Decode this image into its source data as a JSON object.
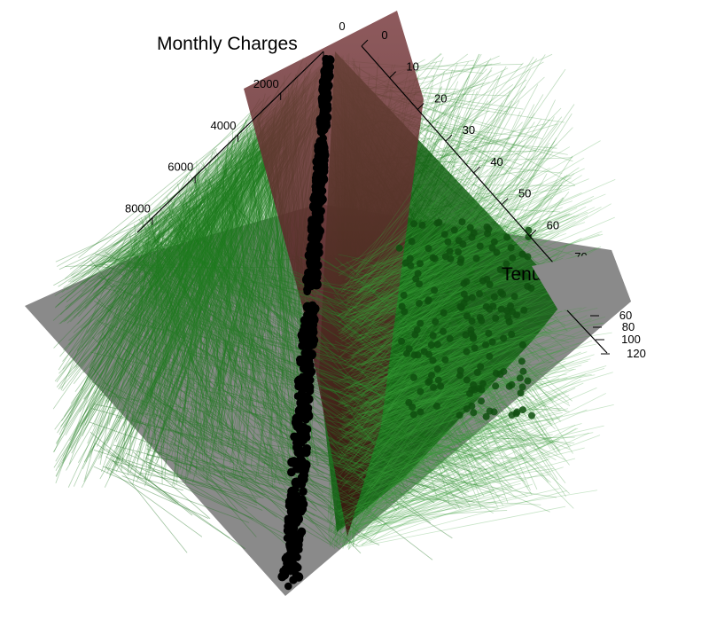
{
  "chart_data": {
    "type": "scatter",
    "subtype": "3d-scatter-with-regression-planes",
    "title": "",
    "axes": {
      "z": {
        "label": "Monthly Charges",
        "ticks": [
          "0",
          "2000",
          "4000",
          "6000",
          "8000"
        ],
        "range": [
          0,
          8700
        ]
      },
      "x": {
        "label": "Tenure",
        "ticks": [
          "0",
          "10",
          "20",
          "30",
          "40",
          "50",
          "60",
          "70"
        ],
        "range": [
          0,
          72
        ]
      },
      "y": {
        "label": "",
        "ticks": [
          "60",
          "80",
          "100",
          "120"
        ],
        "range": [
          20,
          120
        ]
      }
    },
    "series": [
      {
        "marker": "black-filled-circle",
        "values_note": ""
      }
    ],
    "planes": [
      {
        "color": "#8a8a8a"
      },
      {
        "color": "#7a3d40"
      }
    ],
    "colors": {
      "points": "#000000",
      "drop_lines": "#1e7a1e",
      "fan_fill": "#0b5c0b",
      "plane_gray": "#8a8a8a",
      "plane_maroon": "#7a3d40"
    },
    "grid": false,
    "legend": "none"
  }
}
